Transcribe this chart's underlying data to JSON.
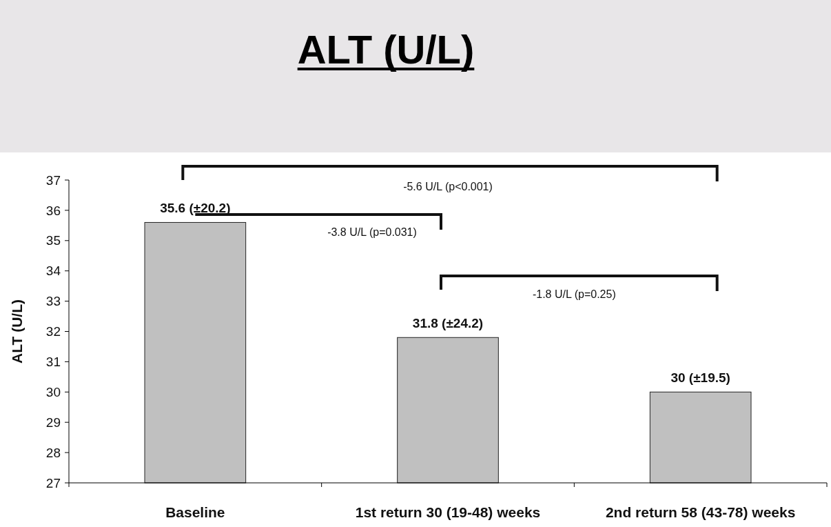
{
  "chart_data": {
    "type": "bar",
    "title": "ALT (U/L)",
    "ylabel": "ALT (U/L)",
    "categories": [
      "Baseline",
      "1st return 30 (19-48) weeks",
      "2nd return 58 (43-78) weeks"
    ],
    "values": [
      35.6,
      31.8,
      30
    ],
    "color": "#c0c0c0",
    "value_labels": [
      "35.6 (±20.2)",
      "31.8 (±24.2)",
      "30 (±19.5)"
    ],
    "ylim": [
      27,
      37
    ],
    "yticks": [
      27,
      28,
      29,
      30,
      31,
      32,
      33,
      34,
      35,
      36,
      37
    ],
    "grid": false,
    "annotations": [
      "-5.6 U/L (p<0.001)",
      "-3.8 U/L (p=0.031)",
      "-1.8 U/L (p=0.25)"
    ]
  }
}
